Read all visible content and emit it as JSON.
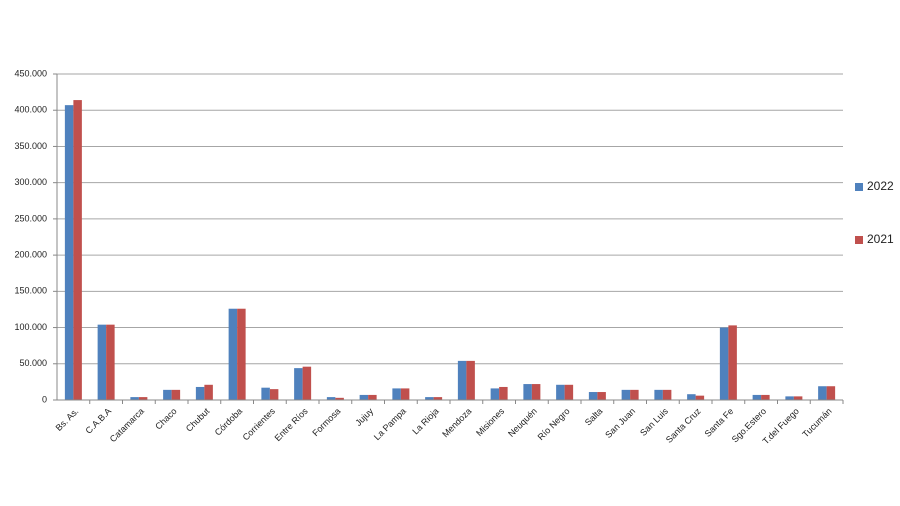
{
  "chart_data": {
    "type": "bar",
    "categories": [
      "Bs. As.",
      "C.A.B.A",
      "Catamarca",
      "Chaco",
      "Chubut",
      "Córdoba",
      "Corrientes",
      "Entre Ríos",
      "Formosa",
      "Jujuy",
      "La Pampa",
      "La Rioja",
      "Mendoza",
      "Misiones",
      "Neuquén",
      "Río Negro",
      "Salta",
      "San Juan",
      "San Luis",
      "Santa Cruz",
      "Santa Fe",
      "Sgo.Estero",
      "T.del Fuego",
      "Tucumán"
    ],
    "series": [
      {
        "name": "2022",
        "color": "#4f81bd",
        "values": [
          407000,
          104000,
          4000,
          14000,
          18000,
          126000,
          17000,
          44000,
          4000,
          7000,
          16000,
          4000,
          54000,
          16000,
          22000,
          21000,
          11000,
          14000,
          14000,
          8000,
          100000,
          7000,
          5000,
          19000
        ]
      },
      {
        "name": "2021",
        "color": "#c0504d",
        "values": [
          414000,
          104000,
          4000,
          14000,
          21000,
          126000,
          15000,
          46000,
          3000,
          7000,
          16000,
          4000,
          54000,
          18000,
          22000,
          21000,
          11000,
          14000,
          14000,
          6000,
          103000,
          7000,
          5000,
          19000
        ]
      }
    ],
    "ylim": [
      0,
      450000
    ],
    "yticks": [
      0,
      {
        "value": 50000,
        "label": "50.000"
      },
      {
        "value": 100000,
        "label": "100.000"
      },
      {
        "value": 150000,
        "label": "150.000"
      },
      {
        "value": 200000,
        "label": "200.000"
      },
      {
        "value": 250000,
        "label": "250.000"
      },
      {
        "value": 300000,
        "label": "300.000"
      },
      {
        "value": 350000,
        "label": "350.000"
      },
      {
        "value": 400000,
        "label": "400.000"
      },
      {
        "value": 450000,
        "label": "450.000"
      }
    ],
    "grid": true,
    "legend": "right"
  }
}
